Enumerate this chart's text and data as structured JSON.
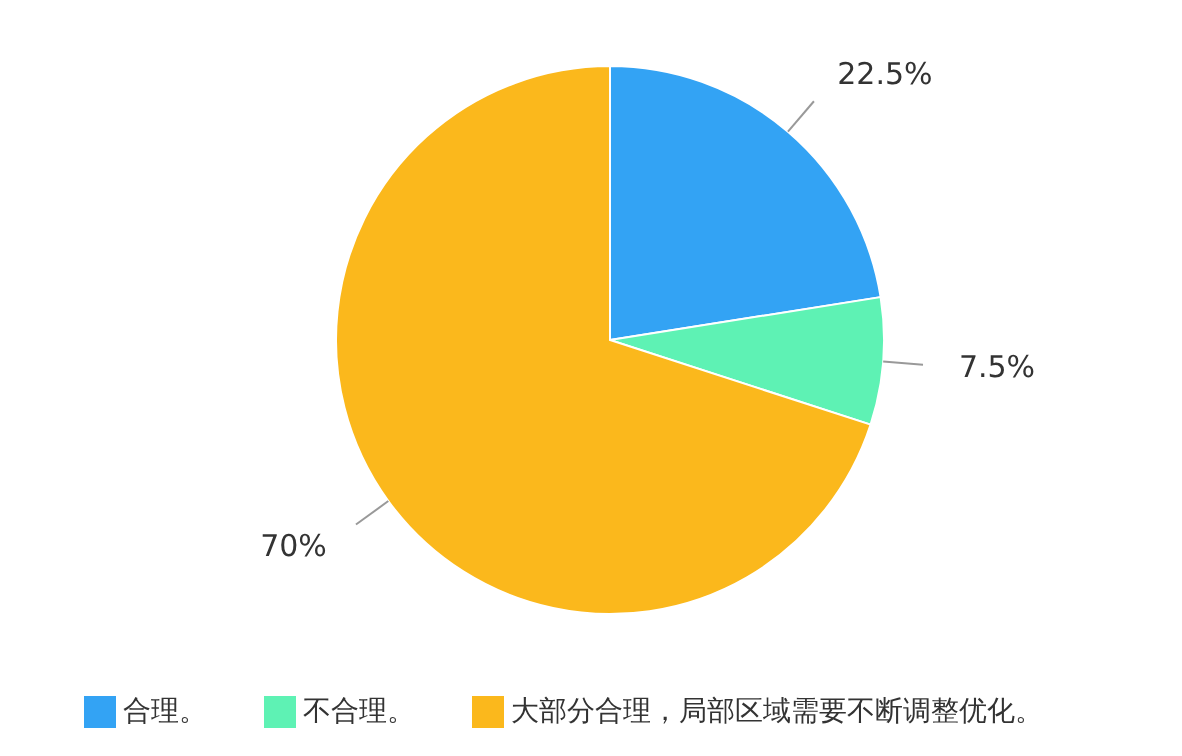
{
  "chart_data": {
    "type": "pie",
    "categories": [
      "合理。",
      "不合理。",
      "大部分合理，局部区域需要不断调整优化。"
    ],
    "values": [
      22.5,
      7.5,
      70
    ],
    "colors": [
      "#33a3f4",
      "#5ef2b4",
      "#fbb81c"
    ],
    "value_labels": [
      "22.5%",
      "7.5%",
      "70%"
    ],
    "legend": "bottom"
  }
}
